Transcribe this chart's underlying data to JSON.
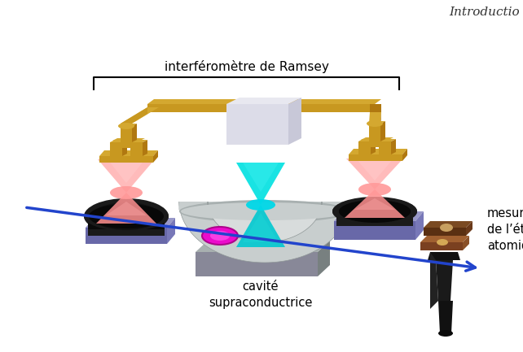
{
  "title_italic": "Introductio",
  "label_ramsey": "interféromètre de Ramsey",
  "label_cavity": "cavité\nsupraconductrice",
  "label_measure": "mesure\nde l’état\natomique",
  "bg_color": "#ffffff",
  "fig_width": 6.42,
  "fig_height": 4.33,
  "dpi": 100
}
